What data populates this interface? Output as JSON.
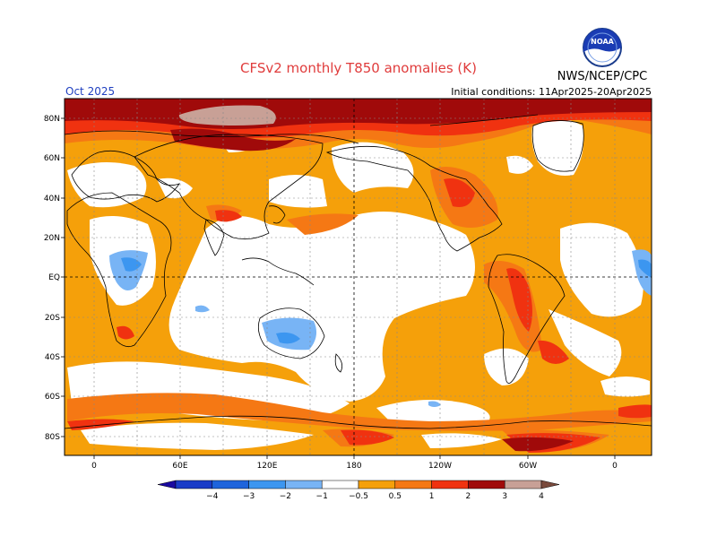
{
  "header": {
    "title": "CFSv2 monthly T850 anomalies (K)",
    "month": "Oct 2025",
    "initial_conditions": "Initial conditions: 11Apr2025-20Apr2025",
    "org": "NWS/NCEP/CPC",
    "logo_text": "NOAA"
  },
  "axes": {
    "lat_labels": [
      "80N",
      "60N",
      "40N",
      "20N",
      "EQ",
      "20S",
      "40S",
      "60S",
      "80S"
    ],
    "lon_labels": [
      "0",
      "60E",
      "120E",
      "180",
      "120W",
      "60W",
      "0"
    ]
  },
  "colorbar": {
    "labels": [
      "−4",
      "−3",
      "−2",
      "−1",
      "−0.5",
      "0.5",
      "1",
      "2",
      "3",
      "4"
    ],
    "colors": [
      "#1a0aa0",
      "#1a3cc8",
      "#1e64dc",
      "#3c96f0",
      "#78b4f5",
      "#ffffff",
      "#f5a00a",
      "#f57814",
      "#f03210",
      "#a00a0a",
      "#c8a096",
      "#7a4a3c"
    ]
  },
  "palette": {
    "lt05": "#78b4f5",
    "lt1": "#3c96f0",
    "p05": "#f5a00a",
    "p1": "#f57814",
    "p2": "#f03210",
    "p3": "#a00a0a",
    "p4": "#c8a096"
  }
}
